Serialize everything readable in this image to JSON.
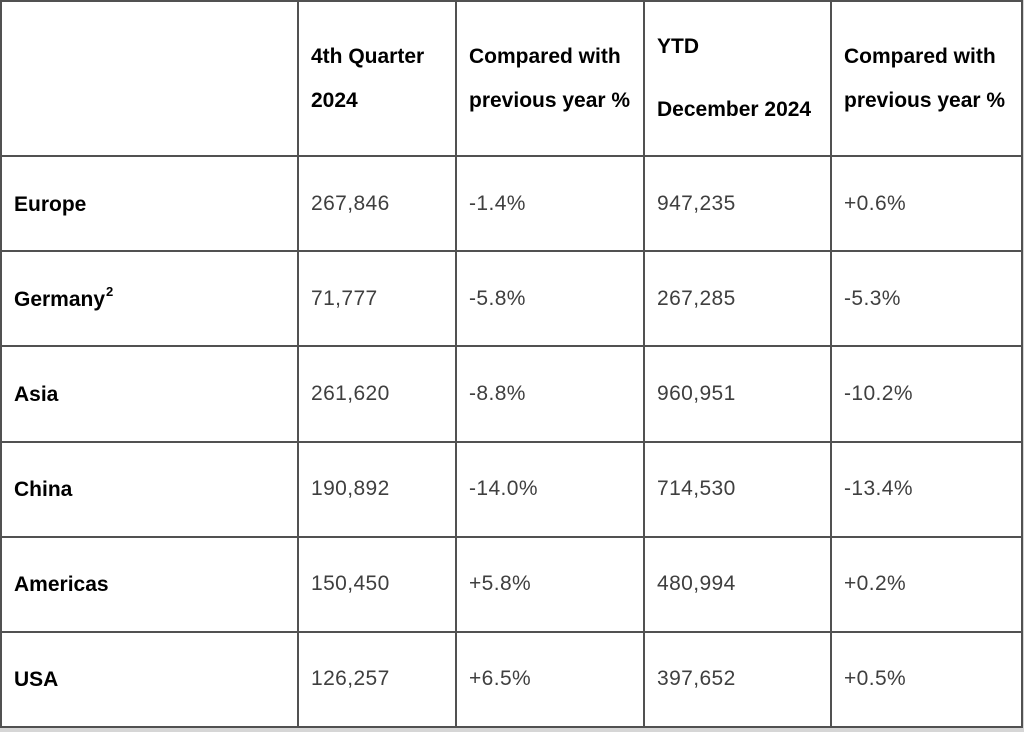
{
  "table": {
    "header": {
      "cols": [
        {
          "line1": "4th Quarter",
          "line2": "2024"
        },
        {
          "line1": "Compared with",
          "line2": "previous year %"
        },
        {
          "line1": "YTD",
          "line2": "December 2024"
        },
        {
          "line1": "Compared with",
          "line2": "previous year %"
        }
      ]
    },
    "rows": [
      {
        "region": "Europe",
        "footnote": "",
        "q4_2024": "267,846",
        "q4_vs_prev_year": "-1.4%",
        "ytd_dec_2024": "947,235",
        "ytd_vs_prev_year": "+0.6%"
      },
      {
        "region": "Germany",
        "footnote": "2",
        "q4_2024": "71,777",
        "q4_vs_prev_year": "-5.8%",
        "ytd_dec_2024": "267,285",
        "ytd_vs_prev_year": "-5.3%"
      },
      {
        "region": "Asia",
        "footnote": "",
        "q4_2024": "261,620",
        "q4_vs_prev_year": "-8.8%",
        "ytd_dec_2024": "960,951",
        "ytd_vs_prev_year": "-10.2%"
      },
      {
        "region": "China",
        "footnote": "",
        "q4_2024": "190,892",
        "q4_vs_prev_year": "-14.0%",
        "ytd_dec_2024": "714,530",
        "ytd_vs_prev_year": "-13.4%"
      },
      {
        "region": "Americas",
        "footnote": "",
        "q4_2024": "150,450",
        "q4_vs_prev_year": "+5.8%",
        "ytd_dec_2024": "480,994",
        "ytd_vs_prev_year": "+0.2%"
      },
      {
        "region": "USA",
        "footnote": "",
        "q4_2024": "126,257",
        "q4_vs_prev_year": "+6.5%",
        "ytd_dec_2024": "397,652",
        "ytd_vs_prev_year": "+0.5%"
      }
    ],
    "colors": {
      "border": "#515151",
      "label_text": "#000000",
      "value_text": "#3f3f3f",
      "background": "#ffffff",
      "page_background": "#d6d6d6"
    }
  }
}
